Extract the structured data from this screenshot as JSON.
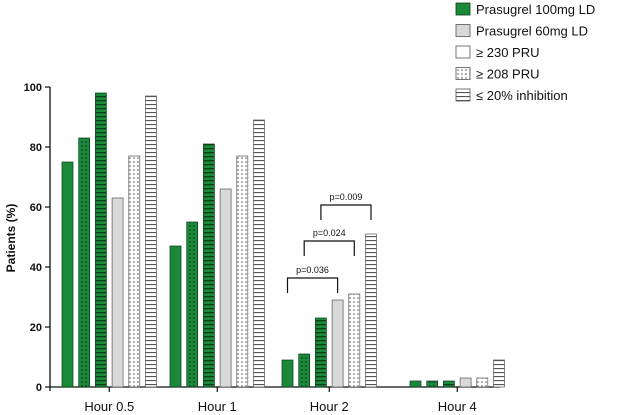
{
  "chart_data": {
    "type": "bar",
    "ylabel": "Patients (%)",
    "ylim": [
      0,
      100
    ],
    "yticks": [
      "0",
      "20",
      "40",
      "60",
      "80",
      "100"
    ],
    "categories": [
      "Hour 0.5",
      "Hour 1",
      "Hour 2",
      "Hour 4"
    ],
    "legend_position": "top-right",
    "series": [
      {
        "name": "Prasugrel 100mg LD",
        "color": "#1a8a3a",
        "pattern": "solid",
        "values": [
          75,
          47,
          9,
          2
        ],
        "legend_label": "Prasugrel 100mg LD"
      },
      {
        "name": "Prasugrel 100mg LD (≥ 230 PRU)",
        "color": "#1a8a3a",
        "pattern": "dots",
        "values": [
          83,
          55,
          11,
          2
        ],
        "legend_label": null
      },
      {
        "name": "Prasugrel 100mg LD (≤ 20% inhibition)",
        "color": "#1a8a3a",
        "pattern": "hlines",
        "values": [
          98,
          81,
          23,
          2
        ],
        "legend_label": null
      },
      {
        "name": "Prasugrel 60mg LD",
        "color": "#d9d9d9",
        "pattern": "solid",
        "values": [
          63,
          66,
          29,
          3
        ],
        "legend_label": "Prasugrel 60mg LD"
      },
      {
        "name": "≥ 208 PRU",
        "color": "#ffffff",
        "pattern": "dots",
        "values": [
          77,
          77,
          31,
          3
        ],
        "legend_label": "≥ 208 PRU"
      },
      {
        "name": "≤ 20% inhibition",
        "color": "#ffffff",
        "pattern": "hlines",
        "values": [
          97,
          89,
          51,
          9
        ],
        "legend_label": "≤ 20% inhibition"
      }
    ],
    "legend": [
      {
        "label": "Prasugrel 100mg LD",
        "fill": "#1a8a3a",
        "pattern": "solid"
      },
      {
        "label": "Prasugrel 60mg LD",
        "fill": "#d9d9d9",
        "pattern": "solid"
      },
      {
        "label": "≥ 230 PRU",
        "fill": "#ffffff",
        "pattern": "solid"
      },
      {
        "label": "≥ 208 PRU",
        "fill": "#ffffff",
        "pattern": "dots"
      },
      {
        "label": "≤ 20% inhibition",
        "fill": "#ffffff",
        "pattern": "hlines"
      }
    ],
    "annotations": [
      {
        "text": "p=0.036",
        "category": "Hour 2",
        "from_series": 0,
        "to_series": 3
      },
      {
        "text": "p=0.024",
        "category": "Hour 2",
        "from_series": 1,
        "to_series": 4
      },
      {
        "text": "p=0.009",
        "category": "Hour 2",
        "from_series": 2,
        "to_series": 5
      }
    ]
  }
}
